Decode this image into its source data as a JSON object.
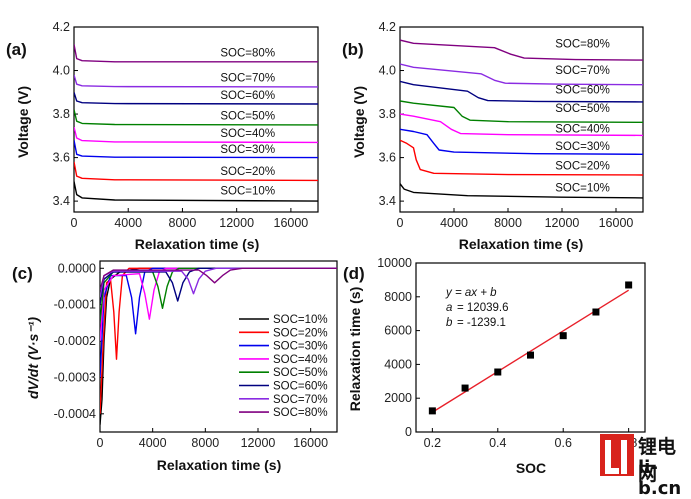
{
  "colors": {
    "soc10": "#000000",
    "soc20": "#ff0000",
    "soc30": "#0000ee",
    "soc40": "#ff00ff",
    "soc50": "#008000",
    "soc60": "#000080",
    "soc70": "#8a2be2",
    "soc80": "#800080",
    "fit_line": "#e8202a",
    "points": "#000000"
  },
  "panels": {
    "a": {
      "label": "(a)"
    },
    "b": {
      "label": "(b)"
    },
    "c": {
      "label": "(c)"
    },
    "d": {
      "label": "(d)"
    }
  },
  "fit": {
    "equation": "y = ax + b",
    "a_label": "a",
    "a_value": "= 12039.6",
    "b_label": "b",
    "b_value": "= -1239.1"
  },
  "watermark": {
    "line1": "锂电网",
    "line2": "li-b.cn"
  },
  "chart_data": [
    {
      "id": "a",
      "type": "line",
      "xlabel": "Relaxation time (s)",
      "ylabel": "Voltage (V)",
      "xlim": [
        0,
        18000
      ],
      "ylim": [
        3.35,
        4.2
      ],
      "xticks": [
        0,
        4000,
        8000,
        12000,
        16000
      ],
      "yticks": [
        3.4,
        3.6,
        3.8,
        4.0,
        4.2
      ],
      "series": [
        {
          "name": "SOC=10%",
          "color_key": "soc10",
          "points": [
            [
              0,
              3.49
            ],
            [
              200,
              3.43
            ],
            [
              600,
              3.415
            ],
            [
              3000,
              3.405
            ],
            [
              18000,
              3.4
            ]
          ]
        },
        {
          "name": "SOC=20%",
          "color_key": "soc20",
          "points": [
            [
              0,
              3.58
            ],
            [
              200,
              3.515
            ],
            [
              600,
              3.505
            ],
            [
              3000,
              3.498
            ],
            [
              18000,
              3.495
            ]
          ]
        },
        {
          "name": "SOC=30%",
          "color_key": "soc30",
          "points": [
            [
              0,
              3.68
            ],
            [
              200,
              3.615
            ],
            [
              600,
              3.607
            ],
            [
              3000,
              3.602
            ],
            [
              18000,
              3.6
            ]
          ]
        },
        {
          "name": "SOC=40%",
          "color_key": "soc40",
          "points": [
            [
              0,
              3.74
            ],
            [
              200,
              3.69
            ],
            [
              600,
              3.678
            ],
            [
              3000,
              3.672
            ],
            [
              18000,
              3.67
            ]
          ]
        },
        {
          "name": "SOC=50%",
          "color_key": "soc50",
          "points": [
            [
              0,
              3.82
            ],
            [
              200,
              3.767
            ],
            [
              600,
              3.757
            ],
            [
              3000,
              3.752
            ],
            [
              18000,
              3.75
            ]
          ]
        },
        {
          "name": "SOC=60%",
          "color_key": "soc60",
          "points": [
            [
              0,
              3.9
            ],
            [
              200,
              3.86
            ],
            [
              600,
              3.852
            ],
            [
              3000,
              3.848
            ],
            [
              18000,
              3.846
            ]
          ]
        },
        {
          "name": "SOC=70%",
          "color_key": "soc70",
          "points": [
            [
              0,
              3.98
            ],
            [
              200,
              3.937
            ],
            [
              600,
              3.93
            ],
            [
              3000,
              3.926
            ],
            [
              18000,
              3.925
            ]
          ]
        },
        {
          "name": "SOC=80%",
          "color_key": "soc80",
          "points": [
            [
              0,
              4.12
            ],
            [
              200,
              4.055
            ],
            [
              600,
              4.045
            ],
            [
              3000,
              4.04
            ],
            [
              18000,
              4.04
            ]
          ]
        }
      ],
      "labels": [
        {
          "text": "SOC=80%",
          "at": [
            10800,
            4.065
          ]
        },
        {
          "text": "SOC=70%",
          "at": [
            10800,
            3.95
          ]
        },
        {
          "text": "SOC=60%",
          "at": [
            10800,
            3.87
          ]
        },
        {
          "text": "SOC=50%",
          "at": [
            10800,
            3.775
          ]
        },
        {
          "text": "SOC=40%",
          "at": [
            10800,
            3.695
          ]
        },
        {
          "text": "SOC=30%",
          "at": [
            10800,
            3.62
          ]
        },
        {
          "text": "SOC=20%",
          "at": [
            10800,
            3.52
          ]
        },
        {
          "text": "SOC=10%",
          "at": [
            10800,
            3.43
          ]
        }
      ]
    },
    {
      "id": "b",
      "type": "line",
      "xlabel": "Relaxation time (s)",
      "ylabel": "Voltage (V)",
      "xlim": [
        0,
        18000
      ],
      "ylim": [
        3.35,
        4.2
      ],
      "xticks": [
        0,
        4000,
        8000,
        12000,
        16000
      ],
      "yticks": [
        3.4,
        3.6,
        3.8,
        4.0,
        4.2
      ],
      "series": [
        {
          "name": "SOC=10%",
          "color_key": "soc10",
          "points": [
            [
              0,
              3.48
            ],
            [
              300,
              3.455
            ],
            [
              1000,
              3.44
            ],
            [
              5000,
              3.425
            ],
            [
              12000,
              3.418
            ],
            [
              18000,
              3.415
            ]
          ]
        },
        {
          "name": "SOC=20%",
          "color_key": "soc20",
          "points": [
            [
              0,
              3.68
            ],
            [
              500,
              3.665
            ],
            [
              1000,
              3.645
            ],
            [
              1200,
              3.59
            ],
            [
              1500,
              3.545
            ],
            [
              2500,
              3.528
            ],
            [
              8000,
              3.522
            ],
            [
              18000,
              3.52
            ]
          ]
        },
        {
          "name": "SOC=30%",
          "color_key": "soc30",
          "points": [
            [
              0,
              3.73
            ],
            [
              1000,
              3.72
            ],
            [
              2000,
              3.705
            ],
            [
              2500,
              3.665
            ],
            [
              2900,
              3.635
            ],
            [
              4000,
              3.625
            ],
            [
              10000,
              3.618
            ],
            [
              18000,
              3.615
            ]
          ]
        },
        {
          "name": "SOC=40%",
          "color_key": "soc40",
          "points": [
            [
              0,
              3.8
            ],
            [
              1000,
              3.79
            ],
            [
              3000,
              3.765
            ],
            [
              3800,
              3.73
            ],
            [
              4500,
              3.71
            ],
            [
              8000,
              3.705
            ],
            [
              18000,
              3.702
            ]
          ]
        },
        {
          "name": "SOC=50%",
          "color_key": "soc50",
          "points": [
            [
              0,
              3.86
            ],
            [
              1000,
              3.85
            ],
            [
              4000,
              3.83
            ],
            [
              4600,
              3.79
            ],
            [
              5200,
              3.772
            ],
            [
              8000,
              3.765
            ],
            [
              18000,
              3.762
            ]
          ]
        },
        {
          "name": "SOC=60%",
          "color_key": "soc60",
          "points": [
            [
              0,
              3.95
            ],
            [
              1000,
              3.935
            ],
            [
              5000,
              3.905
            ],
            [
              5800,
              3.875
            ],
            [
              6500,
              3.862
            ],
            [
              10000,
              3.858
            ],
            [
              18000,
              3.856
            ]
          ]
        },
        {
          "name": "SOC=70%",
          "color_key": "soc70",
          "points": [
            [
              0,
              4.03
            ],
            [
              1000,
              4.015
            ],
            [
              6000,
              3.985
            ],
            [
              7000,
              3.955
            ],
            [
              7800,
              3.942
            ],
            [
              12000,
              3.937
            ],
            [
              18000,
              3.935
            ]
          ]
        },
        {
          "name": "SOC=80%",
          "color_key": "soc80",
          "points": [
            [
              0,
              4.14
            ],
            [
              1000,
              4.125
            ],
            [
              7000,
              4.105
            ],
            [
              8200,
              4.075
            ],
            [
              9200,
              4.057
            ],
            [
              13000,
              4.05
            ],
            [
              18000,
              4.048
            ]
          ]
        }
      ],
      "labels": [
        {
          "text": "SOC=80%",
          "at": [
            11500,
            4.105
          ]
        },
        {
          "text": "SOC=70%",
          "at": [
            11500,
            3.985
          ]
        },
        {
          "text": "SOC=60%",
          "at": [
            11500,
            3.895
          ]
        },
        {
          "text": "SOC=50%",
          "at": [
            11500,
            3.81
          ]
        },
        {
          "text": "SOC=40%",
          "at": [
            11500,
            3.715
          ]
        },
        {
          "text": "SOC=30%",
          "at": [
            11500,
            3.635
          ]
        },
        {
          "text": "SOC=20%",
          "at": [
            11500,
            3.545
          ]
        },
        {
          "text": "SOC=10%",
          "at": [
            11500,
            3.445
          ]
        }
      ]
    },
    {
      "id": "c",
      "type": "line",
      "xlabel": "Relaxation time (s)",
      "ylabel": "dV/dt (V·s⁻¹)",
      "xlim": [
        0,
        18000
      ],
      "ylim": [
        -0.00045,
        2e-05
      ],
      "xticks": [
        0,
        4000,
        8000,
        12000,
        16000
      ],
      "ytick_values": [
        0,
        -0.0001,
        -0.0002,
        -0.0003,
        -0.0004
      ],
      "ytick_labels": [
        "0.0000",
        "-0.0001",
        "-0.0002",
        "-0.0003",
        "-0.0004"
      ],
      "legend": "right",
      "series": [
        {
          "name": "SOC=10%",
          "color_key": "soc10",
          "points": [
            [
              0,
              -0.00043
            ],
            [
              150,
              -0.00036
            ],
            [
              300,
              -0.0002
            ],
            [
              500,
              -8e-05
            ],
            [
              800,
              -3e-05
            ],
            [
              1500,
              -1e-05
            ],
            [
              3000,
              0
            ],
            [
              18000,
              0
            ]
          ]
        },
        {
          "name": "SOC=20%",
          "color_key": "soc20",
          "points": [
            [
              0,
              -0.0004
            ],
            [
              250,
              -0.0002
            ],
            [
              500,
              -4e-05
            ],
            [
              800,
              -3e-05
            ],
            [
              1050,
              -0.00012
            ],
            [
              1250,
              -0.00025
            ],
            [
              1450,
              -0.00012
            ],
            [
              1700,
              -2e-05
            ],
            [
              2200,
              0
            ],
            [
              18000,
              0
            ]
          ]
        },
        {
          "name": "SOC=30%",
          "color_key": "soc30",
          "points": [
            [
              0,
              -0.0003
            ],
            [
              300,
              -8e-05
            ],
            [
              800,
              -2e-05
            ],
            [
              2000,
              -2e-05
            ],
            [
              2400,
              -8e-05
            ],
            [
              2700,
              -0.00018
            ],
            [
              3000,
              -8e-05
            ],
            [
              3400,
              -1e-05
            ],
            [
              4000,
              0
            ],
            [
              18000,
              0
            ]
          ]
        },
        {
          "name": "SOC=40%",
          "color_key": "soc40",
          "points": [
            [
              0,
              -0.0002
            ],
            [
              300,
              -6e-05
            ],
            [
              1000,
              -2e-05
            ],
            [
              3000,
              -1.5e-05
            ],
            [
              3400,
              -7e-05
            ],
            [
              3750,
              -0.00014
            ],
            [
              4100,
              -6e-05
            ],
            [
              4500,
              -1e-05
            ],
            [
              5000,
              0
            ],
            [
              18000,
              0
            ]
          ]
        },
        {
          "name": "SOC=50%",
          "color_key": "soc50",
          "points": [
            [
              0,
              -0.00015
            ],
            [
              300,
              -4e-05
            ],
            [
              1000,
              -1e-05
            ],
            [
              4000,
              -1e-05
            ],
            [
              4400,
              -5e-05
            ],
            [
              4750,
              -0.00011
            ],
            [
              5100,
              -5e-05
            ],
            [
              5500,
              -1e-05
            ],
            [
              6000,
              0
            ],
            [
              18000,
              0
            ]
          ]
        },
        {
          "name": "SOC=60%",
          "color_key": "soc60",
          "points": [
            [
              0,
              -0.0001
            ],
            [
              300,
              -3e-05
            ],
            [
              1000,
              -1e-05
            ],
            [
              5000,
              -1e-05
            ],
            [
              5500,
              -4e-05
            ],
            [
              5900,
              -9e-05
            ],
            [
              6300,
              -4e-05
            ],
            [
              6800,
              -1e-05
            ],
            [
              7500,
              0
            ],
            [
              18000,
              0
            ]
          ]
        },
        {
          "name": "SOC=70%",
          "color_key": "soc70",
          "points": [
            [
              0,
              -8e-05
            ],
            [
              300,
              -2e-05
            ],
            [
              1000,
              -8e-06
            ],
            [
              6200,
              -8e-06
            ],
            [
              6700,
              -3e-05
            ],
            [
              7100,
              -7e-05
            ],
            [
              7500,
              -3e-05
            ],
            [
              8000,
              -8e-06
            ],
            [
              8800,
              0
            ],
            [
              18000,
              0
            ]
          ]
        },
        {
          "name": "SOC=80%",
          "color_key": "soc80",
          "points": [
            [
              0,
              -6e-05
            ],
            [
              300,
              -2e-05
            ],
            [
              1000,
              -5e-06
            ],
            [
              7500,
              -5e-06
            ],
            [
              8100,
              -2e-05
            ],
            [
              8700,
              -4e-05
            ],
            [
              9300,
              -2e-05
            ],
            [
              9900,
              -5e-06
            ],
            [
              10800,
              0
            ],
            [
              18000,
              0
            ]
          ]
        }
      ]
    },
    {
      "id": "d",
      "type": "scatter",
      "xlabel": "SOC",
      "ylabel": "Relaxation time (s)",
      "xlim": [
        0.15,
        0.85
      ],
      "ylim": [
        0,
        10000
      ],
      "xticks": [
        0.2,
        0.4,
        0.6,
        0.8
      ],
      "xtick_labels": [
        "0.2",
        "0.4",
        "0.6",
        "0.8"
      ],
      "yticks": [
        0,
        2000,
        4000,
        6000,
        8000,
        10000
      ],
      "points": [
        [
          0.2,
          1250
        ],
        [
          0.3,
          2600
        ],
        [
          0.4,
          3550
        ],
        [
          0.5,
          4550
        ],
        [
          0.6,
          5700
        ],
        [
          0.7,
          7100
        ],
        [
          0.8,
          8700
        ]
      ],
      "fit": {
        "slope": 12039.6,
        "intercept": -1239.1,
        "x_range": [
          0.2,
          0.8
        ]
      }
    }
  ]
}
